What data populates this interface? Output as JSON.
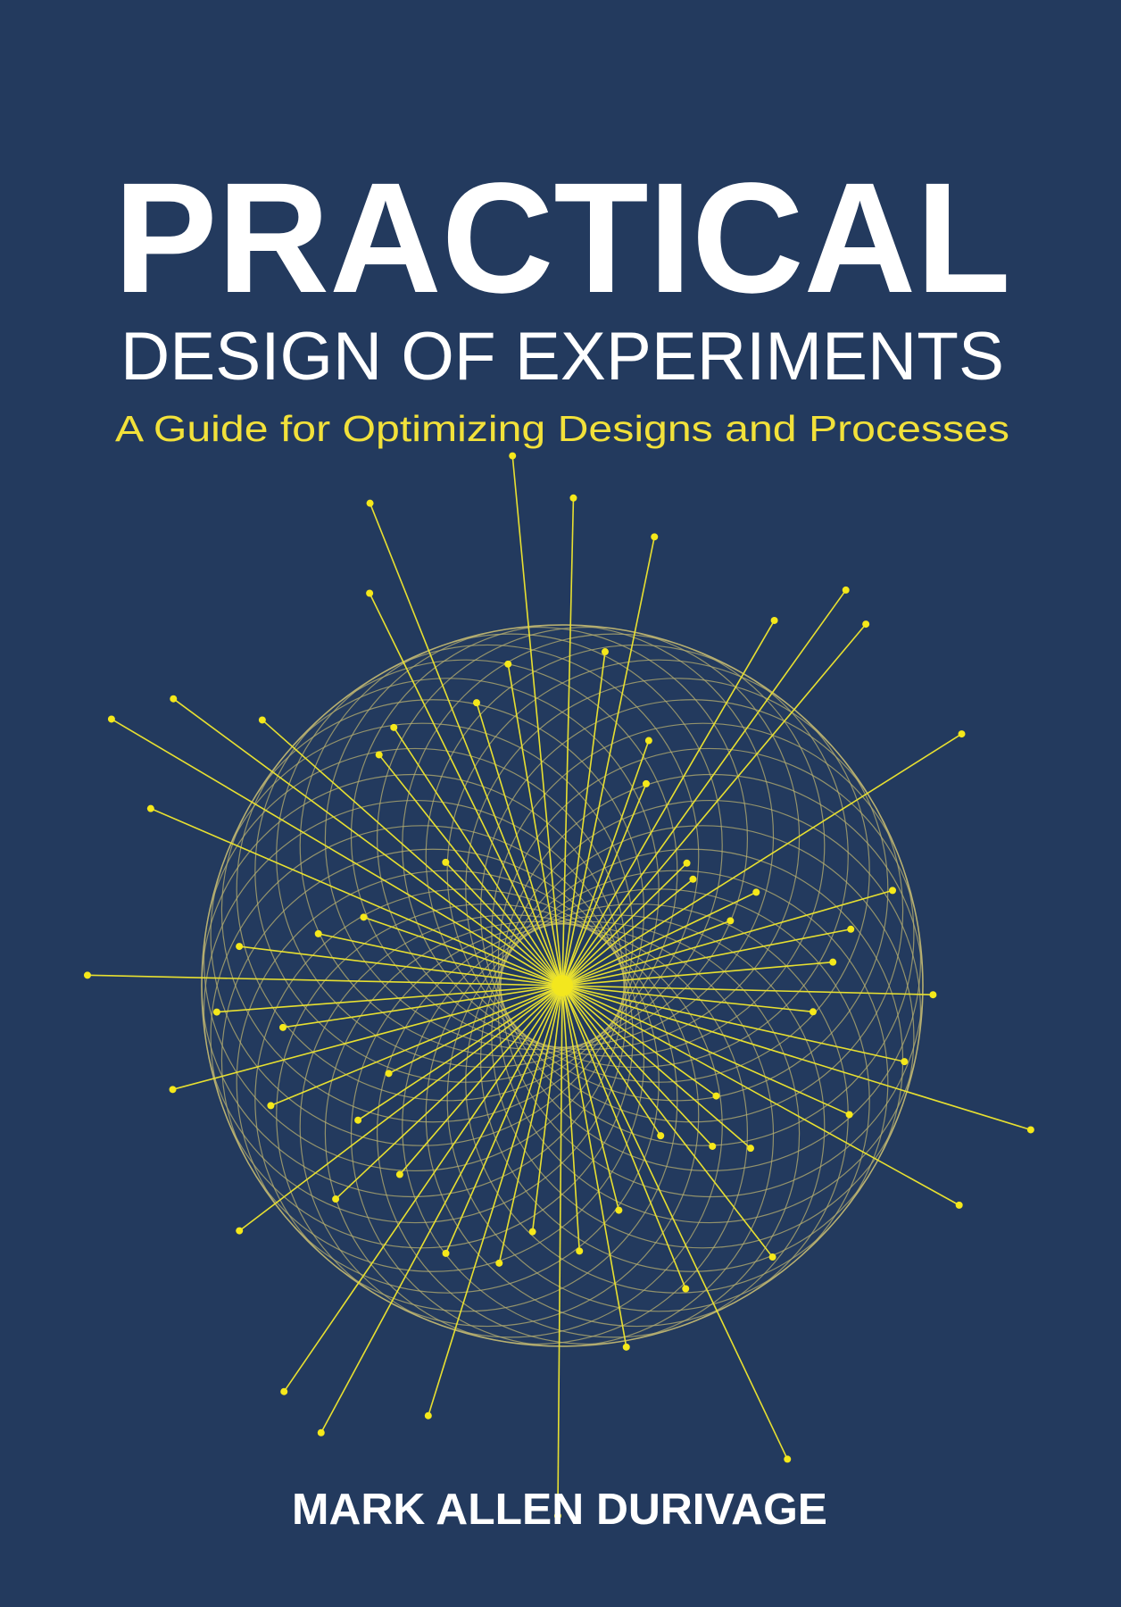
{
  "cover": {
    "title": "PRACTICAL",
    "subtitle": "DESIGN OF EXPERIMENTS",
    "tagline": "A Guide for Optimizing Designs and Processes",
    "author": "MARK ALLEN DURIVAGE"
  }
}
